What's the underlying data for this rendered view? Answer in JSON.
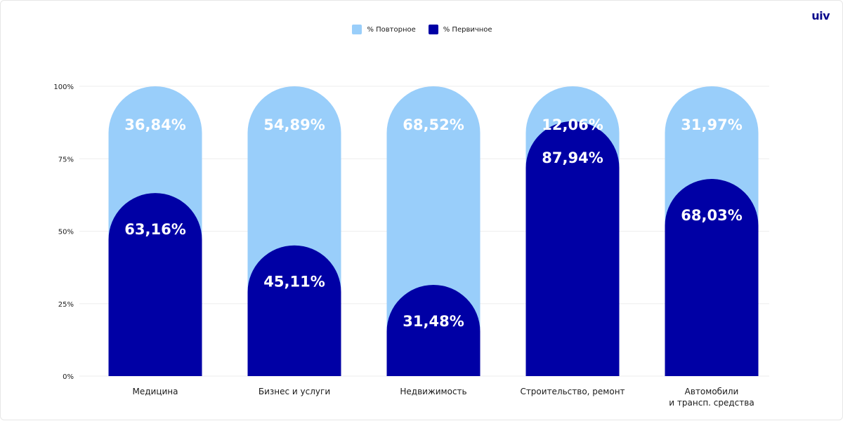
{
  "brand": {
    "logo_text": "uiv"
  },
  "colors": {
    "secondary": "#99CEFA",
    "primary": "#0000A5",
    "grid": "#eeeeee"
  },
  "chart_data": {
    "type": "bar",
    "stacked": true,
    "title": "",
    "xlabel": "",
    "ylabel": "",
    "ylim": [
      0,
      100
    ],
    "y_ticks": [
      "0%",
      "25%",
      "50%",
      "75%",
      "100%"
    ],
    "grid": true,
    "legend_position": "top-center",
    "categories": [
      [
        "Медицина"
      ],
      [
        "Бизнес и услуги"
      ],
      [
        "Недвижимость"
      ],
      [
        "Строительство, ремонт"
      ],
      [
        "Автомобили",
        "и трансп. средства"
      ]
    ],
    "series": [
      {
        "name": "% Повторное",
        "color": "#99CEFA",
        "values": [
          36.84,
          54.89,
          68.52,
          12.06,
          31.97
        ],
        "labels": [
          "36,84%",
          "54,89%",
          "68,52%",
          "12,06%",
          "31,97%"
        ]
      },
      {
        "name": "% Первичное",
        "color": "#0000A5",
        "values": [
          63.16,
          45.11,
          31.48,
          87.94,
          68.03
        ],
        "labels": [
          "63,16%",
          "45,11%",
          "31,48%",
          "87,94%",
          "68,03%"
        ]
      }
    ]
  }
}
